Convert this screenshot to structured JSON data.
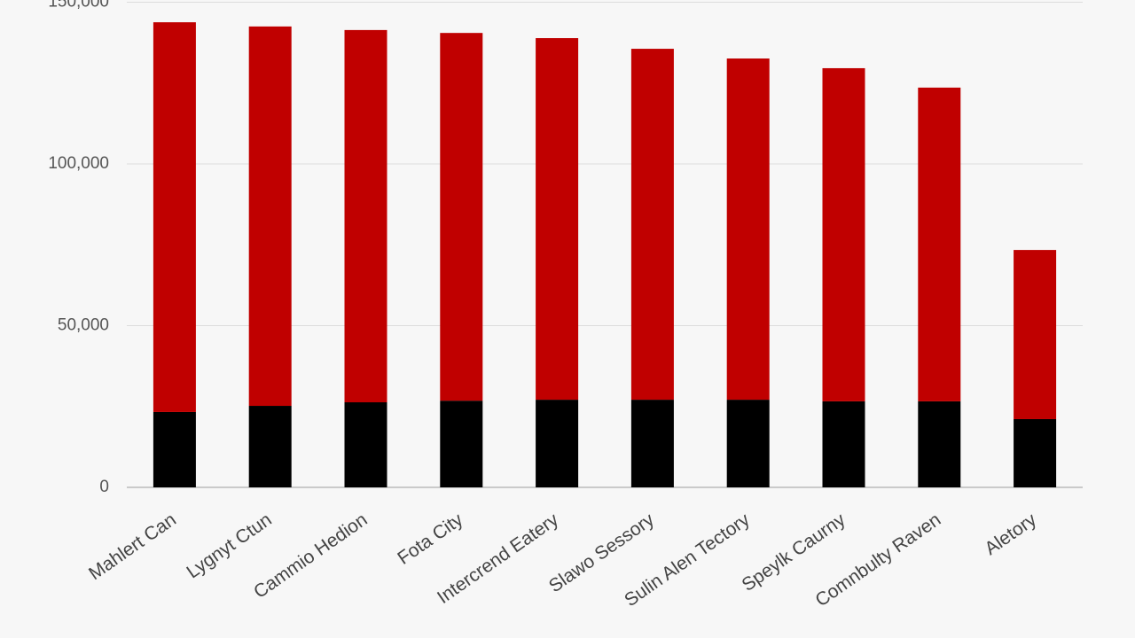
{
  "chart_data": {
    "type": "stacked_bar",
    "categories": [
      "Mahlert Can",
      "Lygnyt Ctun",
      "Cammio Hedion",
      "Fota City",
      "Intercrend Eatery",
      "Slawo Sessory",
      "Sulin Alen Tectory",
      "Speylk Caurny",
      "Comnbulty Raven",
      "Aletory"
    ],
    "series": [
      {
        "color": "#000000",
        "values": [
          23300,
          25200,
          26300,
          26800,
          27100,
          27100,
          27100,
          26600,
          26600,
          21100
        ]
      },
      {
        "color": "#c00000",
        "values": [
          120500,
          117300,
          115100,
          113700,
          111800,
          108500,
          105500,
          103000,
          97000,
          52300
        ]
      }
    ],
    "ylim": [
      0,
      150000
    ],
    "yticks": [
      0,
      {
        "value": 50000,
        "label": "50,000"
      },
      {
        "value": 100000,
        "label": "100,000"
      },
      {
        "value": 150000,
        "label": "150,000"
      }
    ],
    "grid": true
  }
}
